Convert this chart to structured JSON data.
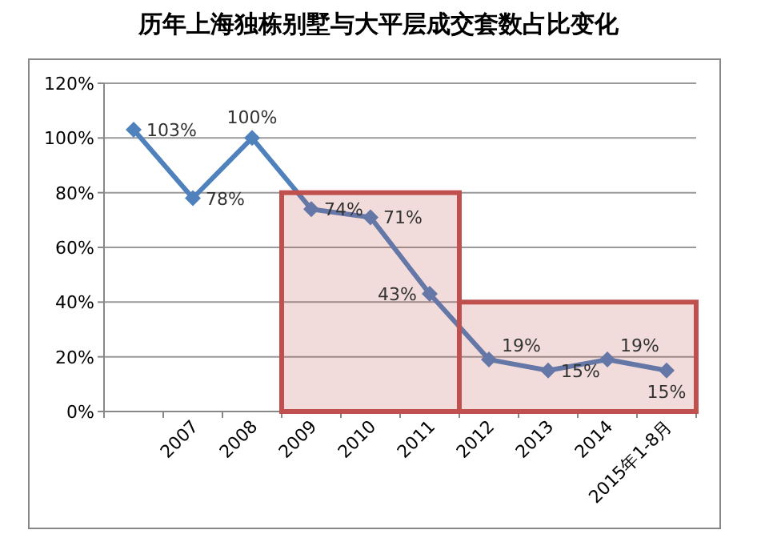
{
  "chart_data": {
    "type": "line",
    "title": "历年上海独栋别墅与大平层成交套数占比变化",
    "categories": [
      null,
      "2007",
      "2008",
      "2009",
      "2010",
      "2011",
      "2012",
      "2013",
      "2014",
      "2015年1-8月"
    ],
    "series": [
      {
        "color": "#4f81bd",
        "values": [
          103,
          78,
          100,
          74,
          71,
          43,
          19,
          15,
          19,
          15
        ]
      }
    ],
    "value_labels": [
      "103%",
      "78%",
      "100%",
      "74%",
      "71%",
      "43%",
      "19%",
      "15%",
      "19%",
      "15%"
    ],
    "marker": "diamond",
    "ylim": [
      0,
      120
    ],
    "yticks": [
      {
        "value": 0,
        "label": "0%"
      },
      {
        "value": 20,
        "label": "20%"
      },
      {
        "value": 40,
        "label": "40%"
      },
      {
        "value": 60,
        "label": "60%"
      },
      {
        "value": 80,
        "label": "80%"
      },
      {
        "value": 100,
        "label": "100%"
      },
      {
        "value": 120,
        "label": "120%"
      }
    ],
    "grid": "y",
    "bands": [
      {
        "axis": "x",
        "from": "2009",
        "to": "2011",
        "color": "#c0504d"
      },
      {
        "axis": "x",
        "from": "2012",
        "to": "2015年1-8月",
        "color": "#c0504d"
      }
    ]
  }
}
